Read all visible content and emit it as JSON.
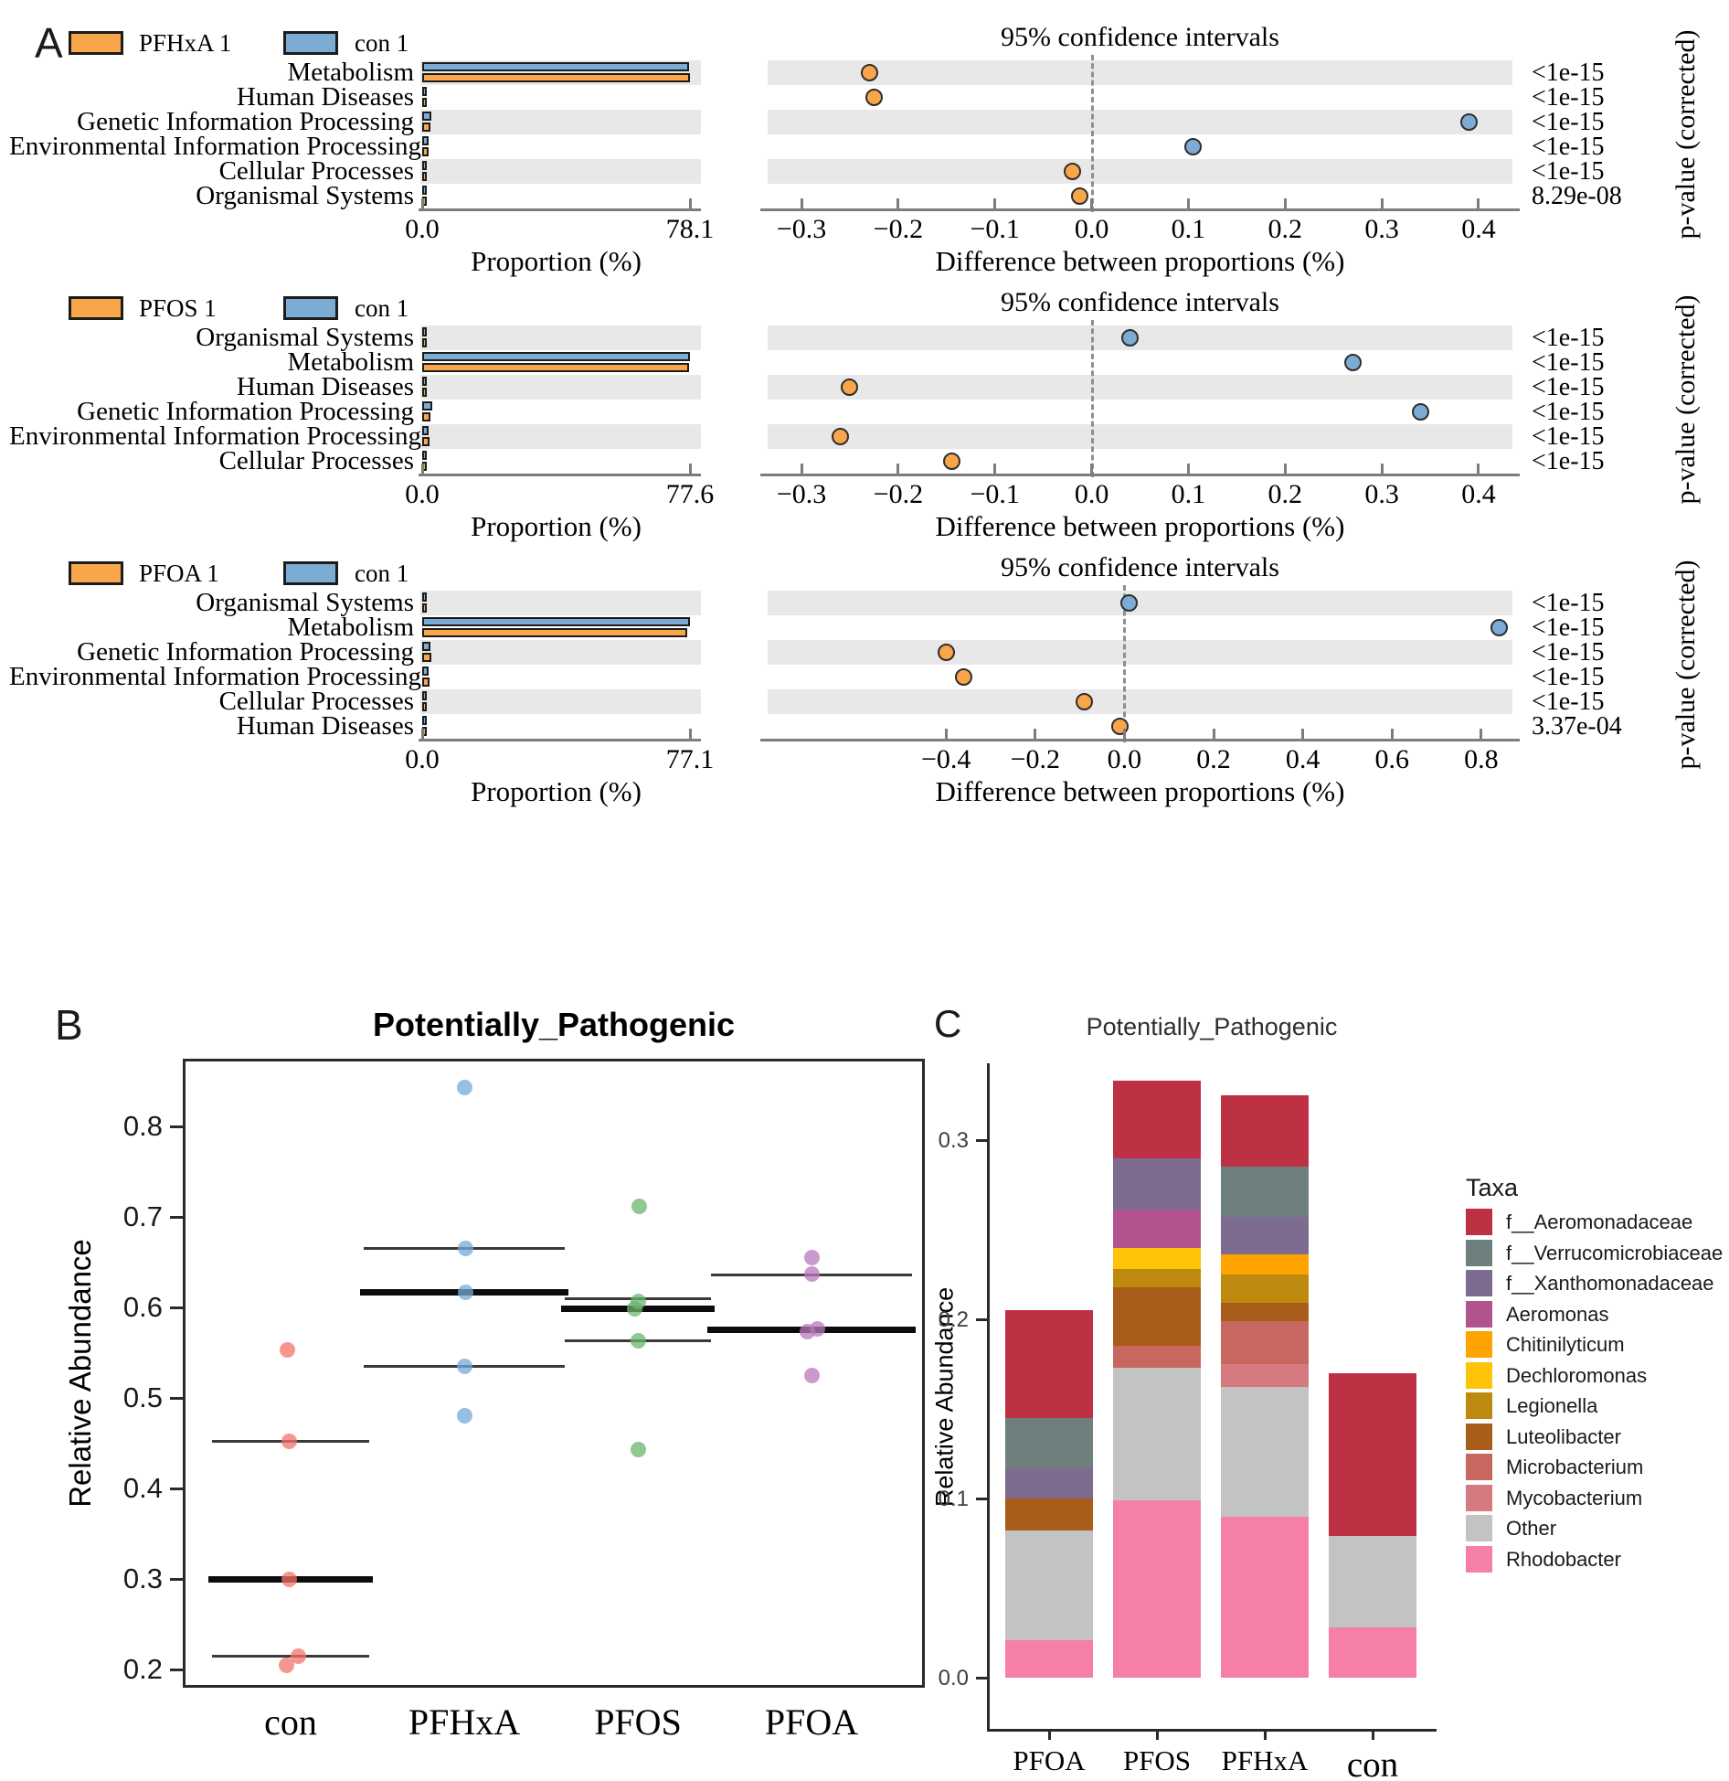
{
  "panel_labels": {
    "A": "A",
    "B": "B",
    "C": "C"
  },
  "colors": {
    "treatment_orange": "#F9A54A",
    "control_blue": "#7CACD4",
    "row_shade": "#E8E8E8",
    "scatter_con": "#F4716A",
    "scatter_pfhxa": "#74A9D8",
    "scatter_pfos": "#69B56D",
    "scatter_pfoa": "#B878BE"
  },
  "chart_data": [
    {
      "id": "A1",
      "type": "bar",
      "variant": "stamp-extended-error-bar",
      "legend": [
        {
          "label": "PFHxA 1",
          "color": "#F9A54A"
        },
        {
          "label": "con 1",
          "color": "#7CACD4"
        }
      ],
      "ci_title": "95% confidence intervals",
      "pvalue_label": "p-value (corrected)",
      "prop_axis": {
        "title": "Proportion (%)",
        "max": 78.1,
        "tick_labels": [
          "0.0",
          "78.1"
        ]
      },
      "diff_axis": {
        "title": "Difference between proportions (%)",
        "min": -0.335,
        "max": 0.435,
        "ticks": [
          {
            "v": -0.3,
            "t": "−0.3"
          },
          {
            "v": -0.2,
            "t": "−0.2"
          },
          {
            "v": -0.1,
            "t": "−0.1"
          },
          {
            "v": 0.0,
            "t": "0.0"
          },
          {
            "v": 0.1,
            "t": "0.1"
          },
          {
            "v": 0.2,
            "t": "0.2"
          },
          {
            "v": 0.3,
            "t": "0.3"
          },
          {
            "v": 0.4,
            "t": "0.4"
          }
        ]
      },
      "rows": [
        {
          "category": "Metabolism",
          "shaded": true,
          "treatment": 78.1,
          "control": 77.87,
          "diff": -0.23,
          "diff_color": "#F9A54A",
          "p": "<1e-15"
        },
        {
          "category": "Human Diseases",
          "shaded": false,
          "treatment": 1.0,
          "control": 0.78,
          "diff": -0.225,
          "diff_color": "#F9A54A",
          "p": "<1e-15"
        },
        {
          "category": "Genetic Information Processing",
          "shaded": true,
          "treatment": 2.3,
          "control": 2.69,
          "diff": 0.39,
          "diff_color": "#7CACD4",
          "p": "<1e-15"
        },
        {
          "category": "Environmental Information Processing",
          "shaded": false,
          "treatment": 1.85,
          "control": 1.96,
          "diff": 0.105,
          "diff_color": "#7CACD4",
          "p": "<1e-15"
        },
        {
          "category": "Cellular Processes",
          "shaded": true,
          "treatment": 0.98,
          "control": 0.96,
          "diff": -0.02,
          "diff_color": "#F9A54A",
          "p": "<1e-15"
        },
        {
          "category": "Organismal Systems",
          "shaded": false,
          "treatment": 0.37,
          "control": 0.36,
          "diff": -0.012,
          "diff_color": "#F9A54A",
          "p": "8.29e-08"
        }
      ]
    },
    {
      "id": "A2",
      "type": "bar",
      "variant": "stamp-extended-error-bar",
      "legend": [
        {
          "label": "PFOS 1",
          "color": "#F9A54A"
        },
        {
          "label": "con 1",
          "color": "#7CACD4"
        }
      ],
      "ci_title": "95% confidence intervals",
      "pvalue_label": "p-value (corrected)",
      "prop_axis": {
        "title": "Proportion (%)",
        "max": 77.6,
        "tick_labels": [
          "0.0",
          "77.6"
        ]
      },
      "diff_axis": {
        "title": "Difference between proportions (%)",
        "min": -0.335,
        "max": 0.435,
        "ticks": [
          {
            "v": -0.3,
            "t": "−0.3"
          },
          {
            "v": -0.2,
            "t": "−0.2"
          },
          {
            "v": -0.1,
            "t": "−0.1"
          },
          {
            "v": 0.0,
            "t": "0.0"
          },
          {
            "v": 0.1,
            "t": "0.1"
          },
          {
            "v": 0.2,
            "t": "0.2"
          },
          {
            "v": 0.3,
            "t": "0.3"
          },
          {
            "v": 0.4,
            "t": "0.4"
          }
        ]
      },
      "rows": [
        {
          "category": "Organismal Systems",
          "shaded": true,
          "treatment": 0.35,
          "control": 0.39,
          "diff": 0.04,
          "diff_color": "#7CACD4",
          "p": "<1e-15"
        },
        {
          "category": "Metabolism",
          "shaded": false,
          "treatment": 77.33,
          "control": 77.6,
          "diff": 0.27,
          "diff_color": "#7CACD4",
          "p": "<1e-15"
        },
        {
          "category": "Human Diseases",
          "shaded": true,
          "treatment": 1.05,
          "control": 0.8,
          "diff": -0.25,
          "diff_color": "#F9A54A",
          "p": "<1e-15"
        },
        {
          "category": "Genetic Information Processing",
          "shaded": false,
          "treatment": 2.5,
          "control": 2.84,
          "diff": 0.34,
          "diff_color": "#7CACD4",
          "p": "<1e-15"
        },
        {
          "category": "Environmental Information Processing",
          "shaded": true,
          "treatment": 2.2,
          "control": 1.94,
          "diff": -0.26,
          "diff_color": "#F9A54A",
          "p": "<1e-15"
        },
        {
          "category": "Cellular Processes",
          "shaded": false,
          "treatment": 1.05,
          "control": 0.905,
          "diff": -0.145,
          "diff_color": "#F9A54A",
          "p": "<1e-15"
        }
      ]
    },
    {
      "id": "A3",
      "type": "bar",
      "variant": "stamp-extended-error-bar",
      "legend": [
        {
          "label": "PFOA 1",
          "color": "#F9A54A"
        },
        {
          "label": "con 1",
          "color": "#7CACD4"
        }
      ],
      "ci_title": "95% confidence intervals",
      "pvalue_label": "p-value (corrected)",
      "prop_axis": {
        "title": "Proportion (%)",
        "max": 77.1,
        "tick_labels": [
          "0.0",
          "77.1"
        ]
      },
      "diff_axis": {
        "title": "Difference between proportions (%)",
        "min": -0.8,
        "max": 0.87,
        "ticks": [
          {
            "v": -0.4,
            "t": "−0.4"
          },
          {
            "v": -0.2,
            "t": "−0.2"
          },
          {
            "v": 0.0,
            "t": "0.0"
          },
          {
            "v": 0.2,
            "t": "0.2"
          },
          {
            "v": 0.4,
            "t": "0.4"
          },
          {
            "v": 0.6,
            "t": "0.6"
          },
          {
            "v": 0.8,
            "t": "0.8"
          }
        ]
      },
      "rows": [
        {
          "category": "Organismal Systems",
          "shaded": true,
          "treatment": 0.35,
          "control": 0.36,
          "diff": 0.01,
          "diff_color": "#7CACD4",
          "p": "<1e-15"
        },
        {
          "category": "Metabolism",
          "shaded": false,
          "treatment": 76.26,
          "control": 77.1,
          "diff": 0.84,
          "diff_color": "#7CACD4",
          "p": "<1e-15"
        },
        {
          "category": "Genetic Information Processing",
          "shaded": true,
          "treatment": 2.7,
          "control": 2.3,
          "diff": -0.4,
          "diff_color": "#F9A54A",
          "p": "<1e-15"
        },
        {
          "category": "Environmental Information Processing",
          "shaded": false,
          "treatment": 2.2,
          "control": 1.84,
          "diff": -0.36,
          "diff_color": "#F9A54A",
          "p": "<1e-15"
        },
        {
          "category": "Cellular Processes",
          "shaded": true,
          "treatment": 1.0,
          "control": 0.91,
          "diff": -0.09,
          "diff_color": "#F9A54A",
          "p": "<1e-15"
        },
        {
          "category": "Human Diseases",
          "shaded": false,
          "treatment": 0.8,
          "control": 0.79,
          "diff": -0.01,
          "diff_color": "#F9A54A",
          "p": "3.37e-04"
        }
      ]
    },
    {
      "id": "B",
      "type": "scatter",
      "title": "Potentially_Pathogenic",
      "ylabel": "Relative Abundance",
      "ylim": [
        0.16,
        0.88
      ],
      "yticks": [
        {
          "v": 0.8,
          "t": "0.8"
        },
        {
          "v": 0.7,
          "t": "0.7"
        },
        {
          "v": 0.6,
          "t": "0.6"
        },
        {
          "v": 0.5,
          "t": "0.5"
        },
        {
          "v": 0.4,
          "t": "0.4"
        },
        {
          "v": 0.3,
          "t": "0.3"
        },
        {
          "v": 0.2,
          "t": "0.2"
        }
      ],
      "groups": [
        {
          "name": "con",
          "color": "#F4716A",
          "points": [
            0.553,
            0.452,
            0.3,
            0.215,
            0.205
          ],
          "jitter": [
            -4,
            -2,
            -2,
            8,
            -5
          ],
          "mean": 0.3,
          "ci": [
            0.452,
            0.215
          ],
          "line_halfwidth": 86
        },
        {
          "name": "PFHxA",
          "color": "#74A9D8",
          "points": [
            0.843,
            0.665,
            0.617,
            0.535,
            0.48
          ],
          "jitter": [
            0,
            1,
            1,
            0,
            0
          ],
          "mean": 0.617,
          "ci": [
            0.665,
            0.535
          ],
          "line_halfwidth": 110
        },
        {
          "name": "PFOS",
          "color": "#69B56D",
          "points": [
            0.712,
            0.607,
            0.598,
            0.563,
            0.443
          ],
          "jitter": [
            1,
            0,
            -4,
            0,
            0
          ],
          "mean": 0.598,
          "ci": [
            0.61,
            0.563
          ],
          "line_halfwidth": 80
        },
        {
          "name": "PFOA",
          "color": "#B878BE",
          "points": [
            0.655,
            0.637,
            0.576,
            0.573,
            0.525
          ],
          "jitter": [
            0,
            0,
            6,
            -5,
            0
          ],
          "mean": 0.575,
          "ci": [
            0.636
          ],
          "line_halfwidth": 110
        }
      ]
    },
    {
      "id": "C",
      "type": "bar",
      "stacked": true,
      "title": "Potentially_Pathogenic",
      "ylabel": "Relative Abundance",
      "yticks": [
        {
          "v": 0.0,
          "t": "0.0"
        },
        {
          "v": 0.1,
          "t": "0.1"
        },
        {
          "v": 0.2,
          "t": "0.2"
        },
        {
          "v": 0.3,
          "t": "0.3"
        }
      ],
      "legend_title": "Taxa",
      "taxa": [
        {
          "name": "f__Aeromonadaceae",
          "color": "#BE3144"
        },
        {
          "name": "f__Verrucomicrobiaceae",
          "color": "#6E7F7E"
        },
        {
          "name": "f__Xanthomonadaceae",
          "color": "#7D6B90"
        },
        {
          "name": "Aeromonas",
          "color": "#B1548E"
        },
        {
          "name": "Chitinilyticum",
          "color": "#FFA300"
        },
        {
          "name": "Dechloromonas",
          "color": "#FFC408"
        },
        {
          "name": "Legionella",
          "color": "#BD8A0F"
        },
        {
          "name": "Luteolibacter",
          "color": "#A85E1A"
        },
        {
          "name": "Microbacterium",
          "color": "#C8675F"
        },
        {
          "name": "Mycobacterium",
          "color": "#D47A80"
        },
        {
          "name": "Other",
          "color": "#C3C3C3"
        },
        {
          "name": "Rhodobacter",
          "color": "#F57FA8"
        }
      ],
      "categories": [
        "PFOA",
        "PFOS",
        "PFHxA",
        "con"
      ],
      "bars": [
        {
          "name": "PFOA",
          "segments": [
            [
              "Rhodobacter",
              0.021
            ],
            [
              "Other",
              0.061
            ],
            [
              "Luteolibacter",
              0.018
            ],
            [
              "f__Xanthomonadaceae",
              0.017
            ],
            [
              "f__Verrucomicrobiaceae",
              0.028
            ],
            [
              "f__Aeromonadaceae",
              0.06
            ]
          ]
        },
        {
          "name": "PFOS",
          "segments": [
            [
              "Rhodobacter",
              0.099
            ],
            [
              "Other",
              0.074
            ],
            [
              "Microbacterium",
              0.012
            ],
            [
              "Luteolibacter",
              0.033
            ],
            [
              "Legionella",
              0.01
            ],
            [
              "Dechloromonas",
              0.012
            ],
            [
              "Aeromonas",
              0.021
            ],
            [
              "f__Xanthomonadaceae",
              0.029
            ],
            [
              "f__Aeromonadaceae",
              0.043
            ]
          ]
        },
        {
          "name": "PFHxA",
          "segments": [
            [
              "Rhodobacter",
              0.09
            ],
            [
              "Other",
              0.072
            ],
            [
              "Mycobacterium",
              0.013
            ],
            [
              "Microbacterium",
              0.024
            ],
            [
              "Luteolibacter",
              0.01
            ],
            [
              "Legionella",
              0.016
            ],
            [
              "Chitinilyticum",
              0.011
            ],
            [
              "f__Xanthomonadaceae",
              0.021
            ],
            [
              "f__Verrucomicrobiaceae",
              0.028
            ],
            [
              "f__Aeromonadaceae",
              0.04
            ]
          ]
        },
        {
          "name": "con",
          "segments": [
            [
              "Rhodobacter",
              0.028
            ],
            [
              "Other",
              0.051
            ],
            [
              "f__Aeromonadaceae",
              0.091
            ]
          ]
        }
      ]
    }
  ]
}
